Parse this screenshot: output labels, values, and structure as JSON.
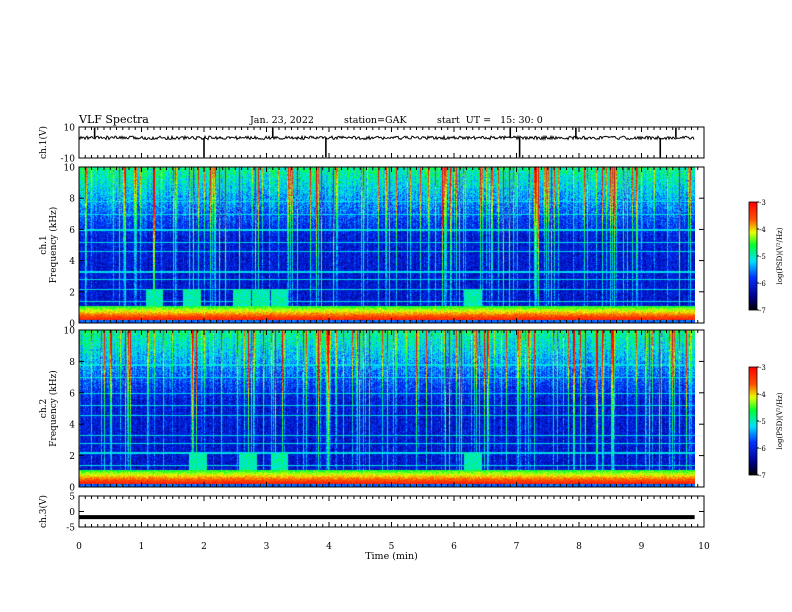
{
  "header": {
    "title": "VLF Spectra",
    "date": "Jan. 23, 2022",
    "station": "station=GAK",
    "start": "start  UT =   15: 30: 0"
  },
  "chart_data": [
    {
      "type": "line",
      "panel": "ch1-waveform",
      "ylabel": "ch.1(V)",
      "ylim": [
        -10,
        10
      ],
      "yticks": [
        "10",
        "-10"
      ],
      "baseline": 3,
      "spike_times_min": [
        0.25,
        2.0,
        3.1,
        3.95,
        6.9,
        7.05,
        7.95,
        9.3,
        9.55
      ],
      "xlim": [
        0,
        10
      ]
    },
    {
      "type": "heatmap",
      "panel": "ch1-spectrogram",
      "ylabel": "ch.1\nFrequency (kHz)",
      "ylim": [
        0,
        10
      ],
      "yticks": [
        "0",
        "2",
        "4",
        "6",
        "8",
        "10"
      ],
      "xlim": [
        0,
        9.85
      ],
      "colorbar": {
        "label": "log(PSD)(V²/Hz)",
        "range": [
          -7,
          -3
        ],
        "ticks": [
          "-3",
          "-4",
          "-5",
          "-6",
          "-7"
        ]
      },
      "bursts_min": [
        1.2,
        1.8,
        2.6,
        2.9,
        3.2,
        6.3
      ]
    },
    {
      "type": "heatmap",
      "panel": "ch2-spectrogram",
      "ylabel": "ch.2\nFrequency (kHz)",
      "ylim": [
        0,
        10
      ],
      "yticks": [
        "0",
        "2",
        "4",
        "6",
        "8",
        "10"
      ],
      "xlim": [
        0,
        9.85
      ],
      "colorbar": {
        "label": "log(PSD)(V²/Hz)",
        "range": [
          -7,
          -3
        ],
        "ticks": [
          "-3",
          "-4",
          "-5",
          "-6",
          "-7"
        ]
      },
      "bursts_min": [
        1.9,
        2.7,
        3.2,
        6.3
      ]
    },
    {
      "type": "line",
      "panel": "ch3-waveform",
      "ylabel": "ch.3(V)",
      "ylim": [
        -5,
        5
      ],
      "yticks": [
        "5",
        "0",
        "-5"
      ],
      "constant_value": -1.8,
      "xlim": [
        0,
        9.85
      ]
    }
  ],
  "xaxis": {
    "label": "Time (min)",
    "range": [
      0,
      10
    ],
    "ticks": [
      "0",
      "1",
      "2",
      "3",
      "4",
      "5",
      "6",
      "7",
      "8",
      "9",
      "10"
    ]
  }
}
